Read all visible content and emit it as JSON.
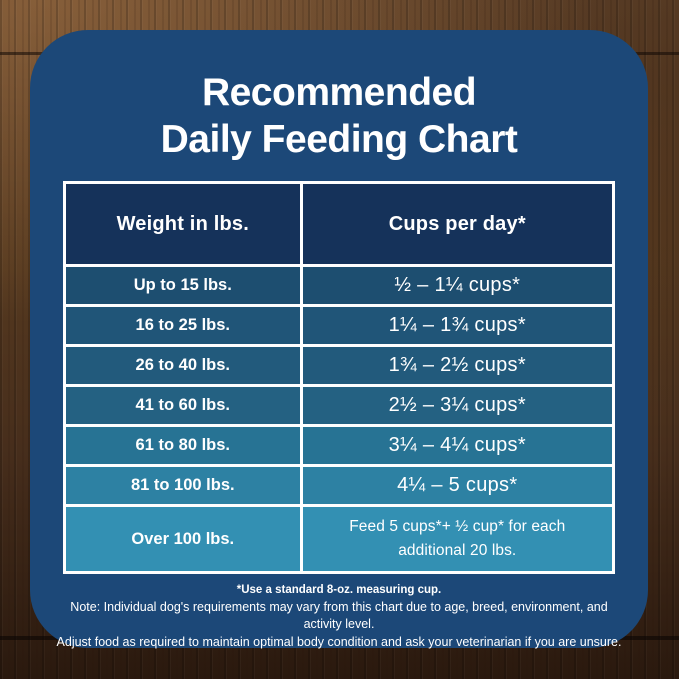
{
  "title": {
    "line1": "Recommended",
    "line2": "Daily Feeding Chart"
  },
  "table": {
    "headers": [
      "Weight in lbs.",
      "Cups per day*"
    ],
    "rows": [
      {
        "weight": "Up to 15 lbs.",
        "cups": "½ – 1¼ cups*"
      },
      {
        "weight": "16 to 25 lbs.",
        "cups": "1¼ – 1¾  cups*"
      },
      {
        "weight": "26 to 40 lbs.",
        "cups": "1¾ – 2½ cups*"
      },
      {
        "weight": "41 to 60 lbs.",
        "cups": "2½ – 3¼ cups*"
      },
      {
        "weight": "61 to 80 lbs.",
        "cups": "3¼ – 4¼ cups*"
      },
      {
        "weight": "81 to 100 lbs.",
        "cups": "4¼ – 5 cups*"
      },
      {
        "weight": "Over 100 lbs.",
        "cups": "Feed 5 cups*+ ½ cup* for each additional 20 lbs."
      }
    ],
    "header_bg": "#15325A",
    "row_colors": [
      "#1D4E70",
      "#205578",
      "#225A7C",
      "#246182",
      "#277394",
      "#2D81A3",
      "#3390B3"
    ],
    "border_color": "#FFFFFF"
  },
  "notes": {
    "line1": "*Use a standard 8-oz. measuring cup.",
    "line2": "Note: Individual dog's requirements may vary from this chart due to age, breed, environment, and activity level.",
    "line3": "Adjust food as required to maintain optimal body condition and ask your veterinarian if you are unsure."
  },
  "colors": {
    "card_bg": "#1C4878",
    "text": "#FFFFFF"
  },
  "chart_data": {
    "type": "table",
    "title": "Recommended Daily Feeding Chart",
    "columns": [
      "Weight in lbs.",
      "Cups per day*"
    ],
    "rows": [
      [
        "Up to 15 lbs.",
        "½ – 1¼ cups*"
      ],
      [
        "16 to 25 lbs.",
        "1¼ – 1¾ cups*"
      ],
      [
        "26 to 40 lbs.",
        "1¾ – 2½ cups*"
      ],
      [
        "41 to 60 lbs.",
        "2½ – 3¼ cups*"
      ],
      [
        "61 to 80 lbs.",
        "3¼ – 4¼ cups*"
      ],
      [
        "81 to 100 lbs.",
        "4¼ – 5 cups*"
      ],
      [
        "Over 100 lbs.",
        "Feed 5 cups*+ ½ cup* for each additional 20 lbs."
      ]
    ],
    "footnotes": [
      "*Use a standard 8-oz. measuring cup.",
      "Note: Individual dog's requirements may vary from this chart due to age, breed, environment, and activity level.",
      "Adjust food as required to maintain optimal body condition and ask your veterinarian if you are unsure."
    ],
    "legend_position": "none",
    "grid": false
  }
}
